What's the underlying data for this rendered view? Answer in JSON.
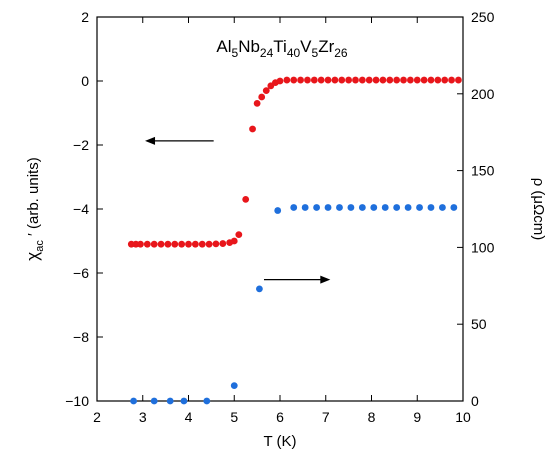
{
  "chart_data": {
    "type": "scatter",
    "title": {
      "parts": [
        {
          "text": "Al",
          "sub": "5"
        },
        {
          "text": "Nb",
          "sub": "24"
        },
        {
          "text": "Ti",
          "sub": "40"
        },
        {
          "text": "V",
          "sub": "5"
        },
        {
          "text": "Zr",
          "sub": "26"
        }
      ]
    },
    "xlabel": "T (K)",
    "ylabel_left": {
      "main": "χ",
      "sub": "ac",
      "rest": " ′ (arb. units)"
    },
    "ylabel_right": "ρ (μΩcm)",
    "xlim": [
      2,
      10
    ],
    "ylim_left": [
      -10,
      2
    ],
    "ylim_right": [
      0,
      250
    ],
    "x_ticks": [
      2,
      3,
      4,
      5,
      6,
      7,
      8,
      9,
      10
    ],
    "y_ticks_left": [
      -10,
      -8,
      -6,
      -4,
      -2,
      0,
      2
    ],
    "y_ticks_right": [
      0,
      50,
      100,
      150,
      200,
      250
    ],
    "x_tick_labels": [
      "2",
      "3",
      "4",
      "5",
      "6",
      "7",
      "8",
      "9",
      "10"
    ],
    "y_tick_labels_left": [
      "−10",
      "−8",
      "−6",
      "−4",
      "−2",
      "0",
      "2"
    ],
    "y_tick_labels_right": [
      "0",
      "50",
      "100",
      "150",
      "200",
      "250"
    ],
    "series": [
      {
        "axis": "left",
        "color": "#e8161b",
        "x": [
          2.75,
          2.85,
          2.95,
          3.1,
          3.25,
          3.4,
          3.55,
          3.7,
          3.85,
          4.0,
          4.15,
          4.3,
          4.45,
          4.6,
          4.75,
          4.9,
          5.0,
          5.1,
          5.25,
          5.4,
          5.5,
          5.6,
          5.7,
          5.8,
          5.9,
          6.0,
          6.15,
          6.3,
          6.45,
          6.6,
          6.75,
          6.9,
          7.05,
          7.2,
          7.35,
          7.5,
          7.65,
          7.8,
          7.95,
          8.1,
          8.25,
          8.4,
          8.55,
          8.7,
          8.85,
          9.0,
          9.15,
          9.3,
          9.45,
          9.6,
          9.75,
          9.9
        ],
        "y": [
          -5.1,
          -5.1,
          -5.1,
          -5.1,
          -5.1,
          -5.1,
          -5.1,
          -5.1,
          -5.1,
          -5.1,
          -5.1,
          -5.1,
          -5.1,
          -5.09,
          -5.08,
          -5.05,
          -5.0,
          -4.8,
          -3.7,
          -1.5,
          -0.7,
          -0.5,
          -0.3,
          -0.15,
          -0.05,
          0.0,
          0.03,
          0.03,
          0.03,
          0.03,
          0.03,
          0.03,
          0.03,
          0.03,
          0.03,
          0.03,
          0.03,
          0.03,
          0.03,
          0.03,
          0.03,
          0.03,
          0.03,
          0.03,
          0.03,
          0.03,
          0.03,
          0.03,
          0.03,
          0.03,
          0.03,
          0.03
        ]
      },
      {
        "axis": "right",
        "color": "#1f6fdc",
        "x": [
          2.8,
          3.25,
          3.6,
          3.9,
          4.4,
          5.0,
          5.55,
          5.95,
          6.3,
          6.55,
          6.8,
          7.05,
          7.3,
          7.55,
          7.8,
          8.05,
          8.3,
          8.55,
          8.8,
          9.05,
          9.3,
          9.55,
          9.8
        ],
        "y": [
          0,
          0,
          0,
          0,
          0,
          10,
          73,
          124,
          126,
          126,
          126,
          126,
          126,
          126,
          126,
          126,
          126,
          126,
          126,
          126,
          126,
          126,
          126
        ]
      }
    ],
    "annotations": [
      {
        "type": "arrow",
        "direction": "left",
        "from": [
          4.55,
          -1.87
        ],
        "to": [
          3.05,
          -1.87
        ],
        "meaning": "points to left axis"
      },
      {
        "type": "arrow",
        "direction": "right",
        "from": [
          5.65,
          79
        ],
        "to": [
          7.1,
          79
        ],
        "meaning": "points to right axis"
      }
    ]
  }
}
